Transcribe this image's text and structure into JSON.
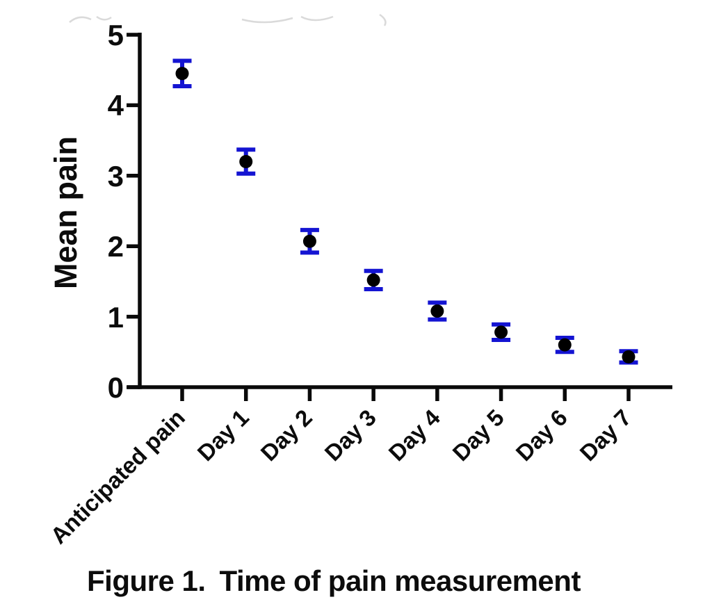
{
  "figure": {
    "caption_prefix": "Figure 1.",
    "caption_text": "Time of pain measurement"
  },
  "chart_data": {
    "type": "scatter",
    "title": "Figure 1.  Time of pain measurement",
    "xlabel": "",
    "ylabel": "Mean pain",
    "categories": [
      "Anticipated pain",
      "Day 1",
      "Day 2",
      "Day 3",
      "Day 4",
      "Day 5",
      "Day 6",
      "Day 7"
    ],
    "series": [
      {
        "name": "Mean pain",
        "values": [
          4.45,
          3.2,
          2.07,
          1.52,
          1.08,
          0.78,
          0.6,
          0.43
        ],
        "errors": [
          0.18,
          0.17,
          0.16,
          0.13,
          0.12,
          0.11,
          0.1,
          0.08
        ]
      }
    ],
    "ylim": [
      0,
      5
    ],
    "yticks": [
      0,
      1,
      2,
      3,
      4,
      5
    ],
    "grid": false,
    "legend_position": "none",
    "marker": "filled-circle",
    "colors": {
      "marker": "#000000",
      "error_bar": "#1414d2",
      "axis": "#0a0a0a",
      "text": "#0c0c0c"
    }
  }
}
